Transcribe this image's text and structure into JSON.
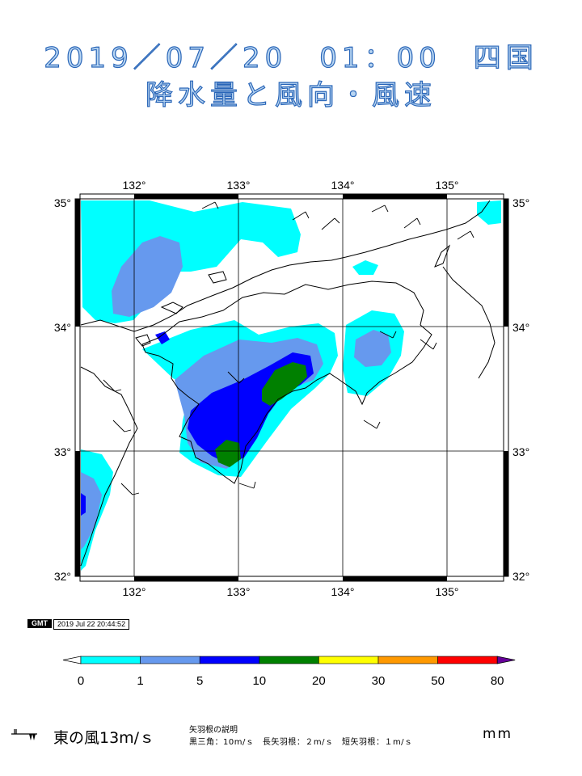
{
  "title": {
    "line1": "2019／07／20　01：00　四国",
    "line2": "降水量と風向・風速"
  },
  "map": {
    "lon_labels": [
      "132°",
      "133°",
      "134°",
      "135°"
    ],
    "lat_labels": [
      "35°",
      "34°",
      "33°",
      "32°"
    ],
    "lon_range": [
      131.5,
      135.5
    ],
    "lat_range": [
      32.0,
      35.0
    ],
    "colors": {
      "land": "#ffffff",
      "coast": "#000000",
      "grid": "#000000"
    }
  },
  "timestamp": {
    "logo_text": "GMT",
    "text": "2019 Jul 22 20:44:52"
  },
  "legend": {
    "bins": [
      {
        "from": 0,
        "to": 1,
        "color": "#00ffff"
      },
      {
        "from": 1,
        "to": 5,
        "color": "#6699ee"
      },
      {
        "from": 5,
        "to": 10,
        "color": "#0000ff"
      },
      {
        "from": 10,
        "to": 20,
        "color": "#008000"
      },
      {
        "from": 20,
        "to": 30,
        "color": "#ffff00"
      },
      {
        "from": 30,
        "to": 50,
        "color": "#ff9900"
      },
      {
        "from": 50,
        "to": 80,
        "color": "#ff0000"
      }
    ],
    "tick_labels": [
      "0",
      "1",
      "5",
      "10",
      "20",
      "30",
      "50",
      "80"
    ],
    "overflow_color": "#660099",
    "unit": "mm"
  },
  "footer": {
    "wind_example": "東の風13m/ｓ",
    "barb_title": "矢羽根の説明",
    "barb_description": "黒三角：10m/ｓ　長矢羽根：２m/ｓ　短矢羽根：１m/ｓ"
  }
}
